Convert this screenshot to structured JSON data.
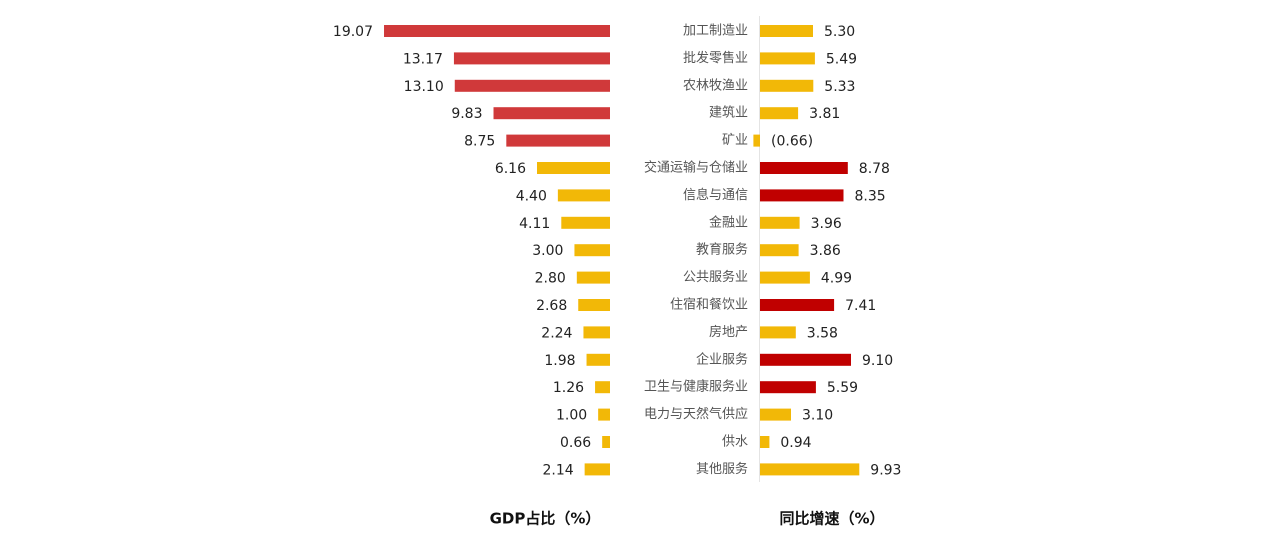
{
  "chart_data": [
    {
      "type": "bar",
      "orientation": "horizontal-left",
      "x_label": "GDP占比（%）",
      "values": [
        19.07,
        13.17,
        13.1,
        9.83,
        8.75,
        6.16,
        4.4,
        4.11,
        3.0,
        2.8,
        2.68,
        2.24,
        1.98,
        1.26,
        1.0,
        0.66,
        2.14
      ],
      "value_labels": [
        "19.07",
        "13.17",
        "13.10",
        "9.83",
        "8.75",
        "6.16",
        "4.40",
        "4.11",
        "3.00",
        "2.80",
        "2.68",
        "2.24",
        "1.98",
        "1.26",
        "1.00",
        "0.66",
        "2.14"
      ],
      "colors": [
        "#d0393a",
        "#d0393a",
        "#d0393a",
        "#d0393a",
        "#d0393a",
        "#f2b807",
        "#f2b807",
        "#f2b807",
        "#f2b807",
        "#f2b807",
        "#f2b807",
        "#f2b807",
        "#f2b807",
        "#f2b807",
        "#f2b807",
        "#f2b807",
        "#f2b807"
      ]
    },
    {
      "type": "bar",
      "orientation": "horizontal-right",
      "x_label": "同比增速（%）",
      "categories": [
        "加工制造业",
        "批发零售业",
        "农林牧渔业",
        "建筑业",
        "矿业",
        "交通运输与仓储业",
        "信息与通信",
        "金融业",
        "教育服务",
        "公共服务业",
        "住宿和餐饮业",
        "房地产",
        "企业服务",
        "卫生与健康服务业",
        "电力与天然气供应",
        "供水",
        "其他服务"
      ],
      "values": [
        5.3,
        5.49,
        5.33,
        3.81,
        -0.66,
        8.78,
        8.35,
        3.96,
        3.86,
        4.99,
        7.41,
        3.58,
        9.1,
        5.59,
        3.1,
        0.94,
        9.93
      ],
      "value_labels": [
        "5.30",
        "5.49",
        "5.33",
        "3.81",
        "(0.66)",
        "8.78",
        "8.35",
        "3.96",
        "3.86",
        "4.99",
        "7.41",
        "3.58",
        "9.10",
        "5.59",
        "3.10",
        "0.94",
        "9.93"
      ],
      "colors": [
        "#f2b807",
        "#f2b807",
        "#f2b807",
        "#f2b807",
        "#f2b807",
        "#c00000",
        "#c00000",
        "#f2b807",
        "#f2b807",
        "#f2b807",
        "#c00000",
        "#f2b807",
        "#c00000",
        "#c00000",
        "#f2b807",
        "#f2b807",
        "#f2b807"
      ]
    }
  ]
}
